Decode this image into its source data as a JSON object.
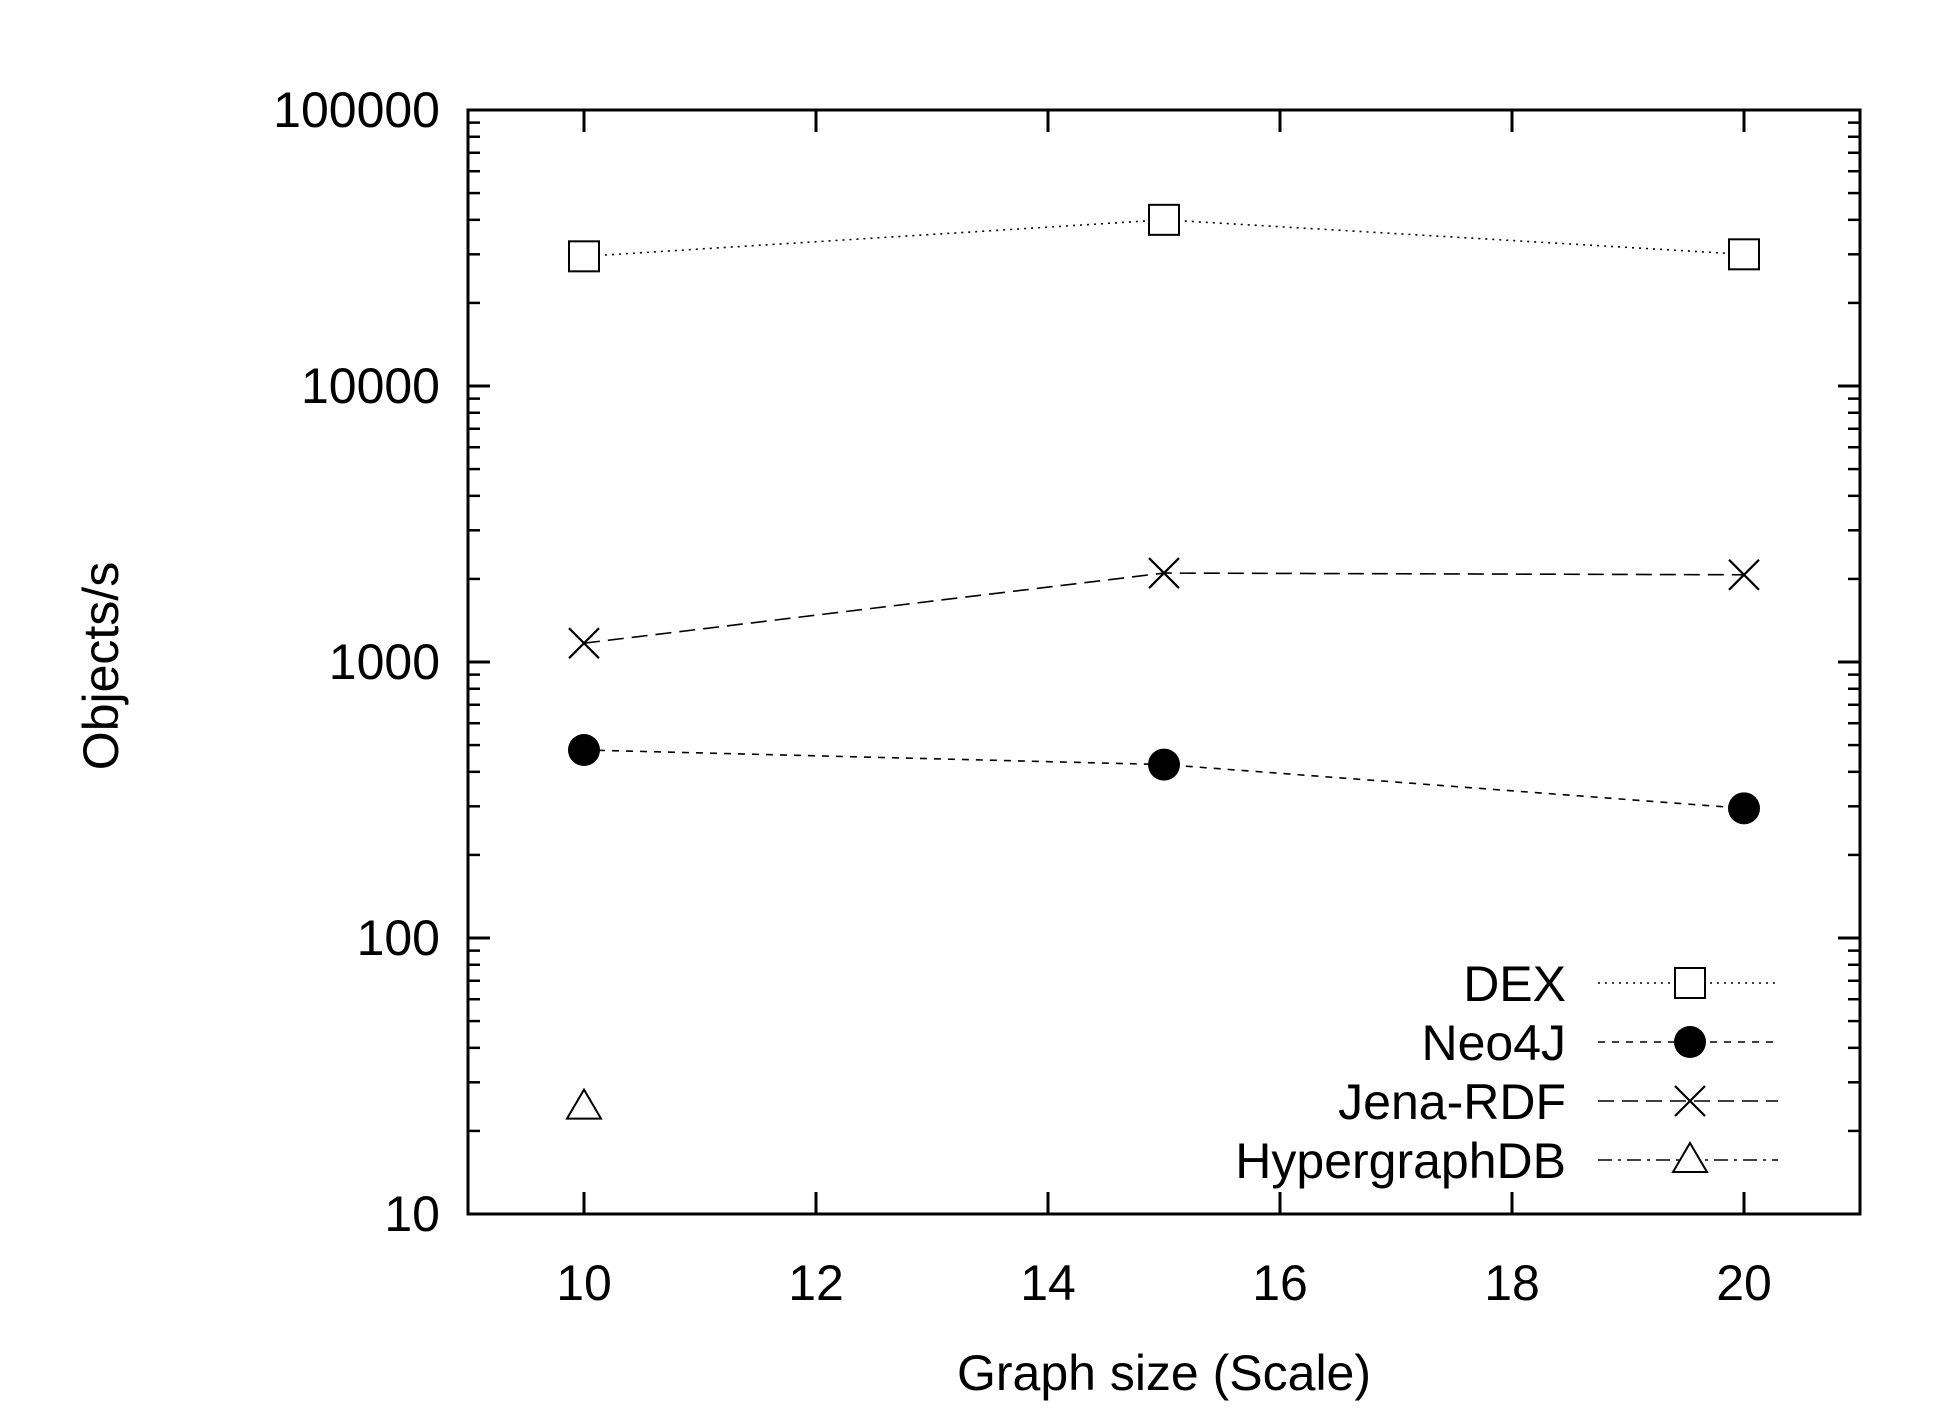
{
  "chart_data": {
    "type": "line",
    "title": "",
    "xlabel": "Graph size (Scale)",
    "ylabel": "Objects/s",
    "xlim": [
      9,
      21
    ],
    "ylim": [
      10,
      100000
    ],
    "yscale": "log",
    "grid": false,
    "legend_position": "bottom-right",
    "x_ticks": [
      "10",
      "12",
      "14",
      "16",
      "18",
      "20"
    ],
    "y_ticks": [
      "10",
      "100",
      "1000",
      "10000",
      "100000"
    ],
    "series": [
      {
        "name": "DEX",
        "marker": "open-square",
        "line_style": "dotted",
        "points": [
          {
            "x": 10,
            "y": 29500
          },
          {
            "x": 15,
            "y": 40000
          },
          {
            "x": 20,
            "y": 30000
          }
        ]
      },
      {
        "name": "Neo4J",
        "marker": "filled-circle",
        "line_style": "short-dash",
        "points": [
          {
            "x": 10,
            "y": 480
          },
          {
            "x": 15,
            "y": 425
          },
          {
            "x": 20,
            "y": 295
          }
        ]
      },
      {
        "name": "Jena-RDF",
        "marker": "cross",
        "line_style": "dashed",
        "points": [
          {
            "x": 10,
            "y": 1170
          },
          {
            "x": 15,
            "y": 2100
          },
          {
            "x": 20,
            "y": 2070
          }
        ]
      },
      {
        "name": "HypergraphDB",
        "marker": "open-triangle",
        "line_style": "dash-dot",
        "points": [
          {
            "x": 10,
            "y": 24.5
          }
        ]
      }
    ]
  }
}
